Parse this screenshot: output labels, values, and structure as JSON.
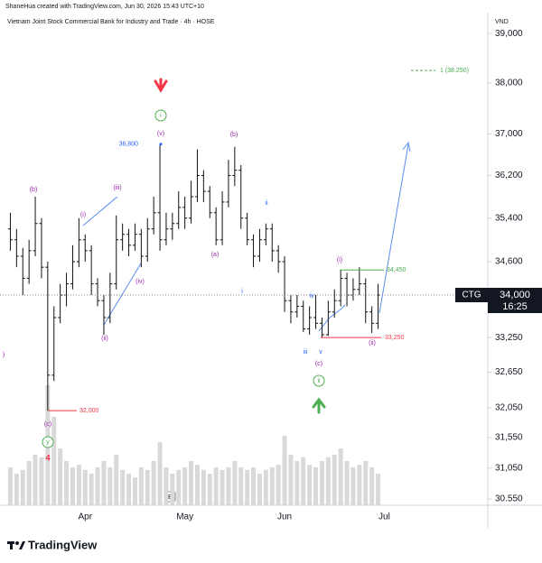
{
  "header": {
    "credit": "ShaneHua created with TradingView.com, Jun 30, 2026 15:43 UTC+10",
    "symbol_title": "Vietnam Joint Stock Commercial Bank for Industry and Trade · 4h · HOSE",
    "currency": "VND",
    "events_button": "E"
  },
  "chart_data": {
    "type": "ohlc",
    "log_scale": true,
    "color": "#111111",
    "volume_color": "#d9d9d9",
    "categories": [
      null,
      null,
      null,
      null,
      null,
      null,
      null,
      null,
      null,
      null,
      null,
      null,
      "Apr",
      null,
      null,
      null,
      null,
      null,
      null,
      null,
      null,
      null,
      null,
      null,
      null,
      null,
      null,
      null,
      "May",
      null,
      null,
      null,
      null,
      null,
      null,
      null,
      null,
      null,
      null,
      null,
      null,
      null,
      null,
      null,
      "Jun",
      null,
      null,
      null,
      null,
      null,
      null,
      null,
      null,
      null,
      null,
      null,
      null,
      null,
      null,
      null,
      "Jul"
    ],
    "open": [
      35200,
      35000,
      34700,
      34300,
      34800,
      35300,
      34500,
      32600,
      33600,
      34000,
      34200,
      34600,
      35000,
      34800,
      34200,
      33900,
      33600,
      34200,
      35000,
      35100,
      34900,
      35100,
      34700,
      35200,
      35500,
      35000,
      35200,
      35300,
      35600,
      35400,
      35800,
      36200,
      35900,
      35500,
      35000,
      35700,
      36200,
      36300,
      35400,
      35000,
      34700,
      35000,
      35200,
      34800,
      34600,
      33900,
      33700,
      33800,
      33400,
      33600,
      33500,
      33300,
      33700,
      33900,
      34300,
      34000,
      34100,
      34200,
      33700,
      33500,
      null
    ],
    "high": [
      35500,
      35200,
      34850,
      35000,
      35800,
      35400,
      34600,
      33800,
      34200,
      34400,
      34900,
      35400,
      35100,
      34900,
      34300,
      34000,
      34400,
      35450,
      35300,
      35200,
      35300,
      35200,
      35400,
      35800,
      36800,
      35500,
      35500,
      35900,
      35800,
      36100,
      36700,
      36300,
      36000,
      35600,
      35900,
      36500,
      36750,
      36400,
      35500,
      35100,
      35200,
      35300,
      35300,
      34900,
      34700,
      34000,
      34000,
      33900,
      33800,
      34000,
      33600,
      33900,
      34100,
      34450,
      34400,
      34300,
      34500,
      34300,
      33800,
      34200,
      null
    ],
    "low": [
      34800,
      34500,
      34000,
      34200,
      34700,
      34300,
      32000,
      32500,
      33500,
      33800,
      34100,
      34500,
      34600,
      34000,
      33800,
      33300,
      33500,
      34100,
      34800,
      34700,
      34800,
      34500,
      34600,
      35100,
      34800,
      34900,
      35000,
      35200,
      35200,
      35300,
      35700,
      35700,
      35400,
      34900,
      34900,
      35600,
      36000,
      35200,
      34900,
      34500,
      34600,
      34900,
      34600,
      34400,
      33700,
      33500,
      33600,
      33350,
      33300,
      33400,
      33250,
      33280,
      33600,
      33800,
      33800,
      33900,
      34000,
      33500,
      33330,
      33400,
      null
    ],
    "close": [
      35000,
      34700,
      34300,
      34800,
      35300,
      34500,
      32600,
      33600,
      34000,
      34200,
      34600,
      35000,
      34800,
      34200,
      33900,
      33600,
      34200,
      35000,
      35100,
      34900,
      35100,
      34700,
      35200,
      35500,
      35000,
      35200,
      35300,
      35600,
      35400,
      35800,
      36200,
      35900,
      35500,
      35000,
      35700,
      36200,
      36300,
      35400,
      35000,
      34700,
      35000,
      35200,
      34800,
      34600,
      33900,
      33700,
      33800,
      33400,
      33600,
      33500,
      33300,
      33700,
      33900,
      34300,
      34000,
      34100,
      34200,
      33700,
      33500,
      34000,
      null
    ],
    "volume": [
      30,
      25,
      28,
      35,
      40,
      38,
      95,
      70,
      45,
      35,
      30,
      32,
      28,
      25,
      30,
      35,
      30,
      40,
      28,
      25,
      22,
      30,
      28,
      35,
      50,
      30,
      25,
      28,
      30,
      35,
      32,
      28,
      25,
      30,
      28,
      30,
      35,
      30,
      28,
      30,
      25,
      28,
      30,
      32,
      55,
      40,
      35,
      38,
      32,
      30,
      35,
      38,
      40,
      45,
      35,
      30,
      32,
      35,
      30,
      25,
      null
    ],
    "volume_lim": [
      0,
      100
    ],
    "ylim": [
      30450,
      39280
    ],
    "yticks": [
      {
        "value": 39000,
        "label": "39,000"
      },
      {
        "value": 38000,
        "label": "38,000"
      },
      {
        "value": 37000,
        "label": "37,000"
      },
      {
        "value": 36200,
        "label": "36,200"
      },
      {
        "value": 35400,
        "label": "35,400"
      },
      {
        "value": 34600,
        "label": "34,600"
      },
      {
        "value": 33250,
        "label": "33,250"
      },
      {
        "value": 32650,
        "label": "32,650"
      },
      {
        "value": 32050,
        "label": "32,050"
      },
      {
        "value": 31550,
        "label": "31,550"
      },
      {
        "value": 31050,
        "label": "31,050"
      },
      {
        "value": 30550,
        "label": "30.550"
      }
    ],
    "price_marks": [
      {
        "value": 36800,
        "label": "36,800",
        "color": "#2962ff"
      },
      {
        "value": 32000,
        "label": "32,000",
        "color": "#f23645"
      },
      {
        "value": 34450,
        "label": "34,450",
        "color": "#4caf50"
      },
      {
        "value": 33250,
        "label": "33,250",
        "color": "#f23645"
      }
    ],
    "target": {
      "value": 38250,
      "label": "1 (38,250)",
      "color": "#4caf50"
    },
    "annotations": [
      {
        "text": "(b)",
        "color": "#9c27b0"
      },
      {
        "text": "(i)",
        "color": "#9c27b0"
      },
      {
        "text": "(iii)",
        "color": "#9c27b0"
      },
      {
        "text": "(iv)",
        "color": "#9c27b0"
      },
      {
        "text": "(ii)",
        "color": "#9c27b0"
      },
      {
        "text": "(v)",
        "color": "#9c27b0"
      },
      {
        "text": "(b)",
        "color": "#9c27b0"
      },
      {
        "text": "(a)",
        "color": "#9c27b0"
      },
      {
        "text": "(c)",
        "color": "#9c27b0"
      },
      {
        "text": "(c)",
        "color": "#9c27b0"
      },
      {
        "text": "(i)",
        "color": "#9c27b0"
      },
      {
        "text": "(ii)",
        "color": "#9c27b0"
      },
      {
        "text": ")",
        "color": "#9c27b0"
      },
      {
        "text": "ii",
        "color": "#2962ff"
      },
      {
        "text": "i",
        "color": "#2962ff"
      },
      {
        "text": "iii",
        "color": "#2962ff"
      },
      {
        "text": "iv",
        "color": "#2962ff"
      },
      {
        "text": "v",
        "color": "#2962ff"
      },
      {
        "text": "i",
        "color": "#4caf50",
        "style": "circle"
      },
      {
        "text": "ii",
        "color": "#4caf50",
        "style": "circle"
      },
      {
        "text": "y",
        "color": "#4caf50",
        "style": "circle"
      },
      {
        "text": "4",
        "color": "#f23645"
      }
    ],
    "symbol": "CTG",
    "last_price": {
      "value": 34000,
      "label": "34,000"
    },
    "countdown": "16:25"
  },
  "footer": {
    "brand": "TradingView"
  }
}
